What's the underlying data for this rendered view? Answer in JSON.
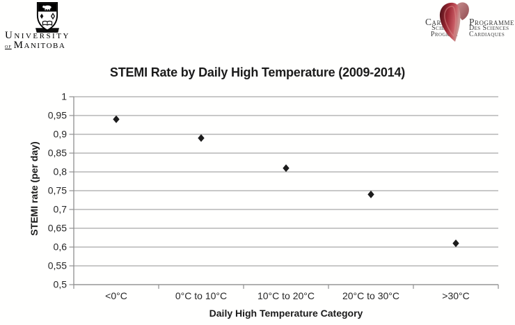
{
  "header": {
    "uofm": {
      "line1": "University",
      "of": "of",
      "line2": "Manitoba"
    },
    "cardiac": {
      "left_lines": [
        "Cardiac",
        "Sciences",
        "Program"
      ],
      "right_lines": [
        "Programme",
        "Des Sciences",
        "Cardiaques"
      ],
      "heart_colors": {
        "dark": "#4a1118",
        "mid": "#9c2733",
        "light": "#c75b63",
        "pale": "#c99a96",
        "lobe_dark": "#8f4a50",
        "lobe_light": "#c98f8f"
      }
    }
  },
  "chart_data": {
    "type": "scatter",
    "title": "STEMI Rate by Daily High Temperature (2009-2014)",
    "xlabel": "Daily High Temperature Category",
    "ylabel": "STEMI rate (per day)",
    "categories": [
      "<0°C",
      "0°C to 10°C",
      "10°C to 20°C",
      "20°C to 30°C",
      ">30°C"
    ],
    "values": [
      0.94,
      0.89,
      0.81,
      0.74,
      0.61
    ],
    "ylim": [
      0.5,
      1.0
    ],
    "ytick_step": 0.05,
    "ytick_labels_top_down": [
      "1",
      "0,95",
      "0,9",
      "0,85",
      "0,8",
      "0,75",
      "0,7",
      "0,65",
      "0,6",
      "0,55",
      "0,5"
    ],
    "grid": true,
    "legend": "none",
    "marker": "diamond",
    "colors": {
      "marker": "#1c1c1c",
      "gridline": "#a8a8a8",
      "axis": "#8f8f8f",
      "text": "#262626"
    }
  }
}
